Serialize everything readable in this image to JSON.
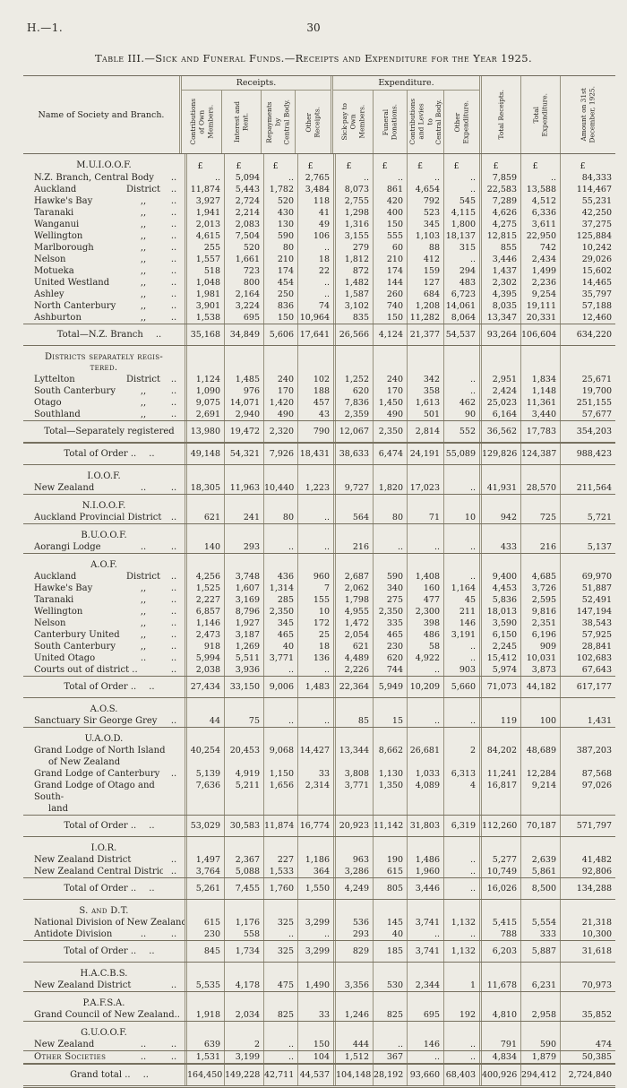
{
  "page": {
    "doc_ref": "H.—1.",
    "page_number": "30"
  },
  "title": "Table III.—Sick and Funeral Funds.—Receipts and Expenditure for the Year 1925.",
  "table": {
    "name_header": "Name of Society and Branch.",
    "currency_symbol": "£",
    "groups": [
      {
        "label": "Receipts."
      },
      {
        "label": "Expenditure."
      }
    ],
    "columns": [
      "Contributions\nof Own\nMembers.",
      "Interest and\nRent.",
      "Repayments\nby\nCentral Body.",
      "Other\nReceipts.",
      "Sick-pay to\nOwn\nMembers.",
      "Funeral\nDonations.",
      "Contributions\nand Levies\nto\nCentral Body.",
      "Other\nExpenditure.",
      "Total Receipts.",
      "Total\nExpenditure.",
      "Amount on 31st\nDecember, 1925."
    ],
    "rows": [
      {
        "t": "sec",
        "l": "M.U.I.O.O.F.",
        "pounds": true
      },
      {
        "t": "d",
        "l": "N.Z. Branch, Central Body",
        "m": "",
        "r": "..",
        "v": [
          "..",
          "5,094",
          "..",
          "2,765",
          "..",
          "..",
          "..",
          "..",
          "7,859",
          "..",
          "84,333"
        ]
      },
      {
        "t": "d",
        "l": "Auckland",
        "m": "District",
        "r": "..",
        "v": [
          "11,874",
          "5,443",
          "1,782",
          "3,484",
          "8,073",
          "861",
          "4,654",
          "..",
          "22,583",
          "13,588",
          "114,467"
        ]
      },
      {
        "t": "d",
        "l": "Hawke's Bay",
        "m": ",,",
        "r": "..",
        "v": [
          "3,927",
          "2,724",
          "520",
          "118",
          "2,755",
          "420",
          "792",
          "545",
          "7,289",
          "4,512",
          "55,231"
        ]
      },
      {
        "t": "d",
        "l": "Taranaki",
        "m": ",,",
        "r": "..",
        "v": [
          "1,941",
          "2,214",
          "430",
          "41",
          "1,298",
          "400",
          "523",
          "4,115",
          "4,626",
          "6,336",
          "42,250"
        ]
      },
      {
        "t": "d",
        "l": "Wanganui",
        "m": ",,",
        "r": "..",
        "v": [
          "2,013",
          "2,083",
          "130",
          "49",
          "1,316",
          "150",
          "345",
          "1,800",
          "4,275",
          "3,611",
          "37,275"
        ]
      },
      {
        "t": "d",
        "l": "Wellington",
        "m": ",,",
        "r": "..",
        "v": [
          "4,615",
          "7,504",
          "590",
          "106",
          "3,155",
          "555",
          "1,103",
          "18,137",
          "12,815",
          "22,950",
          "125,884"
        ]
      },
      {
        "t": "d",
        "l": "Marlborough",
        "m": ",,",
        "r": "..",
        "v": [
          "255",
          "520",
          "80",
          "..",
          "279",
          "60",
          "88",
          "315",
          "855",
          "742",
          "10,242"
        ]
      },
      {
        "t": "d",
        "l": "Nelson",
        "m": ",,",
        "r": "..",
        "v": [
          "1,557",
          "1,661",
          "210",
          "18",
          "1,812",
          "210",
          "412",
          "..",
          "3,446",
          "2,434",
          "29,026"
        ]
      },
      {
        "t": "d",
        "l": "Motueka",
        "m": ",,",
        "r": "..",
        "v": [
          "518",
          "723",
          "174",
          "22",
          "872",
          "174",
          "159",
          "294",
          "1,437",
          "1,499",
          "15,602"
        ]
      },
      {
        "t": "d",
        "l": "United Westland",
        "m": ",,",
        "r": "..",
        "v": [
          "1,048",
          "800",
          "454",
          "..",
          "1,482",
          "144",
          "127",
          "483",
          "2,302",
          "2,236",
          "14,465"
        ]
      },
      {
        "t": "d",
        "l": "Ashley",
        "m": ",,",
        "r": "..",
        "v": [
          "1,981",
          "2,164",
          "250",
          "..",
          "1,587",
          "260",
          "684",
          "6,723",
          "4,395",
          "9,254",
          "35,797"
        ]
      },
      {
        "t": "d",
        "l": "North Canterbury",
        "m": ",,",
        "r": "..",
        "v": [
          "3,901",
          "3,224",
          "836",
          "74",
          "3,102",
          "740",
          "1,208",
          "14,061",
          "8,035",
          "19,111",
          "57,188"
        ]
      },
      {
        "t": "d",
        "l": "Ashburton",
        "m": ",,",
        "r": "..",
        "v": [
          "1,538",
          "695",
          "150",
          "10,964",
          "835",
          "150",
          "11,282",
          "8,064",
          "13,347",
          "20,331",
          "12,460"
        ]
      },
      {
        "t": "tot",
        "l": "Total—N.Z. Branch",
        "r": "..",
        "v": [
          "35,168",
          "34,849",
          "5,606",
          "17,641",
          "26,566",
          "4,124",
          "21,377",
          "54,537",
          "93,264",
          "106,604",
          "634,220"
        ]
      },
      {
        "t": "sec",
        "sc": true,
        "lines": [
          "Districts separately regis-",
          "tered."
        ]
      },
      {
        "t": "d",
        "l": "Lyttelton",
        "m": "District",
        "r": "..",
        "v": [
          "1,124",
          "1,485",
          "240",
          "102",
          "1,252",
          "240",
          "342",
          "..",
          "2,951",
          "1,834",
          "25,671"
        ]
      },
      {
        "t": "d",
        "l": "South Canterbury",
        "m": ",,",
        "r": "..",
        "v": [
          "1,090",
          "976",
          "170",
          "188",
          "620",
          "170",
          "358",
          "..",
          "2,424",
          "1,148",
          "19,700"
        ]
      },
      {
        "t": "d",
        "l": "Otago",
        "m": ",,",
        "r": "..",
        "v": [
          "9,075",
          "14,071",
          "1,420",
          "457",
          "7,836",
          "1,450",
          "1,613",
          "462",
          "25,023",
          "11,361",
          "251,155"
        ]
      },
      {
        "t": "d",
        "l": "Southland",
        "m": ",,",
        "r": "..",
        "v": [
          "2,691",
          "2,940",
          "490",
          "43",
          "2,359",
          "490",
          "501",
          "90",
          "6,164",
          "3,440",
          "57,677"
        ]
      },
      {
        "t": "tot",
        "l": "Total—Separately registered",
        "r": "",
        "v": [
          "13,980",
          "19,472",
          "2,320",
          "790",
          "12,067",
          "2,350",
          "2,814",
          "552",
          "36,562",
          "17,783",
          "354,203"
        ]
      },
      {
        "t": "tot",
        "l": "Total of Order ..",
        "r": "..",
        "v": [
          "49,148",
          "54,321",
          "7,926",
          "18,431",
          "38,633",
          "6,474",
          "24,191",
          "55,089",
          "129,826",
          "124,387",
          "988,423"
        ]
      },
      {
        "t": "sec",
        "l": "I.O.O.F."
      },
      {
        "t": "d",
        "end": true,
        "l": "New Zealand",
        "m": "..",
        "r": "..",
        "v": [
          "18,305",
          "11,963",
          "10,440",
          "1,223",
          "9,727",
          "1,820",
          "17,023",
          "..",
          "41,931",
          "28,570",
          "211,564"
        ]
      },
      {
        "t": "sec",
        "l": "N.I.O.O.F."
      },
      {
        "t": "d",
        "end": true,
        "l": "Auckland Provincial District",
        "m": "",
        "r": "..",
        "v": [
          "621",
          "241",
          "80",
          "..",
          "564",
          "80",
          "71",
          "10",
          "942",
          "725",
          "5,721"
        ]
      },
      {
        "t": "sec",
        "l": "B.U.O.O.F."
      },
      {
        "t": "d",
        "end": true,
        "l": "Aorangi Lodge",
        "m": "..",
        "r": "..",
        "v": [
          "140",
          "293",
          "..",
          "..",
          "216",
          "..",
          "..",
          "..",
          "433",
          "216",
          "5,137"
        ]
      },
      {
        "t": "sec",
        "l": "A.O.F."
      },
      {
        "t": "d",
        "l": "Auckland",
        "m": "District",
        "r": "..",
        "v": [
          "4,256",
          "3,748",
          "436",
          "960",
          "2,687",
          "590",
          "1,408",
          "..",
          "9,400",
          "4,685",
          "69,970"
        ]
      },
      {
        "t": "d",
        "l": "Hawke's Bay",
        "m": ",,",
        "r": "..",
        "v": [
          "1,525",
          "1,607",
          "1,314",
          "7",
          "2,062",
          "340",
          "160",
          "1,164",
          "4,453",
          "3,726",
          "51,887"
        ]
      },
      {
        "t": "d",
        "l": "Taranaki",
        "m": ",,",
        "r": "..",
        "v": [
          "2,227",
          "3,169",
          "285",
          "155",
          "1,798",
          "275",
          "477",
          "45",
          "5,836",
          "2,595",
          "52,491"
        ]
      },
      {
        "t": "d",
        "l": "Wellington",
        "m": ",,",
        "r": "..",
        "v": [
          "6,857",
          "8,796",
          "2,350",
          "10",
          "4,955",
          "2,350",
          "2,300",
          "211",
          "18,013",
          "9,816",
          "147,194"
        ]
      },
      {
        "t": "d",
        "l": "Nelson",
        "m": ",,",
        "r": "..",
        "v": [
          "1,146",
          "1,927",
          "345",
          "172",
          "1,472",
          "335",
          "398",
          "146",
          "3,590",
          "2,351",
          "38,543"
        ]
      },
      {
        "t": "d",
        "l": "Canterbury United",
        "m": ",,",
        "r": "..",
        "v": [
          "2,473",
          "3,187",
          "465",
          "25",
          "2,054",
          "465",
          "486",
          "3,191",
          "6,150",
          "6,196",
          "57,925"
        ]
      },
      {
        "t": "d",
        "l": "South Canterbury",
        "m": ",,",
        "r": "..",
        "v": [
          "918",
          "1,269",
          "40",
          "18",
          "621",
          "230",
          "58",
          "..",
          "2,245",
          "909",
          "28,841"
        ]
      },
      {
        "t": "d",
        "l": "United Otago",
        "m": "..",
        "r": "..",
        "v": [
          "5,994",
          "5,511",
          "3,771",
          "136",
          "4,489",
          "620",
          "4,922",
          "..",
          "15,412",
          "10,031",
          "102,683"
        ]
      },
      {
        "t": "d",
        "l": "Courts out of district ..",
        "m": "",
        "r": "..",
        "v": [
          "2,038",
          "3,936",
          "..",
          "..",
          "2,226",
          "744",
          "..",
          "903",
          "5,974",
          "3,873",
          "67,643"
        ]
      },
      {
        "t": "tot",
        "l": "Total of Order ..",
        "r": "..",
        "v": [
          "27,434",
          "33,150",
          "9,006",
          "1,483",
          "22,364",
          "5,949",
          "10,209",
          "5,660",
          "71,073",
          "44,182",
          "617,177"
        ]
      },
      {
        "t": "sec",
        "l": "A.O.S."
      },
      {
        "t": "d",
        "end": true,
        "l": "Sanctuary Sir George Grey",
        "m": "",
        "r": "..",
        "v": [
          "44",
          "75",
          "..",
          "..",
          "85",
          "15",
          "..",
          "..",
          "119",
          "100",
          "1,431"
        ]
      },
      {
        "t": "sec",
        "l": "U.A.O.D."
      },
      {
        "t": "d2",
        "lines": [
          "Grand Lodge of North Island",
          "of New Zealand"
        ],
        "v": [
          "40,254",
          "20,453",
          "9,068",
          "14,427",
          "13,344",
          "8,662",
          "26,681",
          "2",
          "84,202",
          "48,689",
          "387,203"
        ]
      },
      {
        "t": "d",
        "l": "Grand Lodge of Canterbury",
        "m": "",
        "r": "..",
        "v": [
          "5,139",
          "4,919",
          "1,150",
          "33",
          "3,808",
          "1,130",
          "1,033",
          "6,313",
          "11,241",
          "12,284",
          "87,568"
        ]
      },
      {
        "t": "d2",
        "lines": [
          "Grand Lodge of Otago and South-",
          "land"
        ],
        "v": [
          "7,636",
          "5,211",
          "1,656",
          "2,314",
          "3,771",
          "1,350",
          "4,089",
          "4",
          "16,817",
          "9,214",
          "97,026"
        ]
      },
      {
        "t": "tot",
        "l": "Total of Order ..",
        "r": "..",
        "v": [
          "53,029",
          "30,583",
          "11,874",
          "16,774",
          "20,923",
          "11,142",
          "31,803",
          "6,319",
          "112,260",
          "70,187",
          "571,797"
        ]
      },
      {
        "t": "sec",
        "l": "I.O.R."
      },
      {
        "t": "d",
        "l": "New Zealand District",
        "m": "",
        "r": "..",
        "v": [
          "1,497",
          "2,367",
          "227",
          "1,186",
          "963",
          "190",
          "1,486",
          "..",
          "5,277",
          "2,639",
          "41,482"
        ]
      },
      {
        "t": "d",
        "l": "New Zealand Central District",
        "m": "",
        "r": "..",
        "v": [
          "3,764",
          "5,088",
          "1,533",
          "364",
          "3,286",
          "615",
          "1,960",
          "..",
          "10,749",
          "5,861",
          "92,806"
        ]
      },
      {
        "t": "tot",
        "l": "Total of Order ..",
        "r": "..",
        "v": [
          "5,261",
          "7,455",
          "1,760",
          "1,550",
          "4,249",
          "805",
          "3,446",
          "..",
          "16,026",
          "8,500",
          "134,288"
        ]
      },
      {
        "t": "sec",
        "sc": true,
        "l": "S. and D.T."
      },
      {
        "t": "d",
        "l": "National Division of New Zealand",
        "m": "",
        "r": "",
        "v": [
          "615",
          "1,176",
          "325",
          "3,299",
          "536",
          "145",
          "3,741",
          "1,132",
          "5,415",
          "5,554",
          "21,318"
        ]
      },
      {
        "t": "d",
        "l": "Antidote Division",
        "m": "..",
        "r": "..",
        "v": [
          "230",
          "558",
          "..",
          "..",
          "293",
          "40",
          "..",
          "..",
          "788",
          "333",
          "10,300"
        ]
      },
      {
        "t": "tot",
        "l": "Total of Order ..",
        "r": "..",
        "v": [
          "845",
          "1,734",
          "325",
          "3,299",
          "829",
          "185",
          "3,741",
          "1,132",
          "6,203",
          "5,887",
          "31,618"
        ]
      },
      {
        "t": "sec",
        "l": "H.A.C.B.S."
      },
      {
        "t": "d",
        "end": true,
        "l": "New Zealand District",
        "m": "",
        "r": "..",
        "v": [
          "5,535",
          "4,178",
          "475",
          "1,490",
          "3,356",
          "530",
          "2,344",
          "1",
          "11,678",
          "6,231",
          "70,973"
        ]
      },
      {
        "t": "sec",
        "l": "P.A.F.S.A."
      },
      {
        "t": "d",
        "end": true,
        "l": "Grand Council of New Zealand..",
        "m": "",
        "r": "",
        "v": [
          "1,918",
          "2,034",
          "825",
          "33",
          "1,246",
          "825",
          "695",
          "192",
          "4,810",
          "2,958",
          "35,852"
        ]
      },
      {
        "t": "sec",
        "l": "G.U.O.O.F."
      },
      {
        "t": "d",
        "end": true,
        "l": "New Zealand",
        "m": "..",
        "r": "..",
        "v": [
          "639",
          "2",
          "..",
          "150",
          "444",
          "..",
          "146",
          "..",
          "791",
          "590",
          "474"
        ]
      },
      {
        "t": "d",
        "end": true,
        "sc": true,
        "l": "Other Societies",
        "m": "..",
        "r": "..",
        "v": [
          "1,531",
          "3,199",
          "..",
          "104",
          "1,512",
          "367",
          "..",
          "..",
          "4,834",
          "1,879",
          "50,385"
        ]
      },
      {
        "t": "grand",
        "l": "Grand total ..",
        "r": "..",
        "v": [
          "164,450",
          "149,228",
          "42,711",
          "44,537",
          "104,148",
          "28,192",
          "93,660",
          "68,403",
          "400,926",
          "294,412",
          "2,724,840"
        ]
      }
    ]
  }
}
